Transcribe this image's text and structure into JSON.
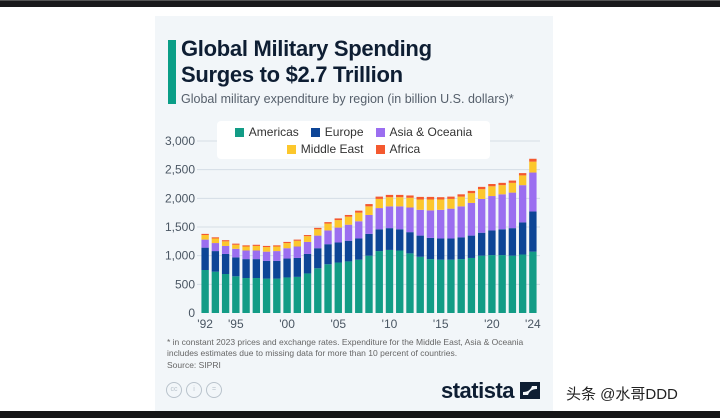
{
  "title": "Global Military Spending Surges to $2.7 Trillion",
  "title_lines": [
    "Global Military Spending",
    "Surges to $2.7 Trillion"
  ],
  "subtitle": "Global military expenditure by region (in billion U.S. dollars)*",
  "colors": {
    "accent": "#0a9e87",
    "Americas": "#139c86",
    "Europe": "#0d4596",
    "Asia & Oceania": "#9b6ef0",
    "Middle East": "#fcc72c",
    "Africa": "#f4592f"
  },
  "legend": [
    {
      "label": "Americas",
      "color": "#139c86"
    },
    {
      "label": "Europe",
      "color": "#0d4596"
    },
    {
      "label": "Asia & Oceania",
      "color": "#9b6ef0"
    },
    {
      "label": "Middle East",
      "color": "#fcc72c"
    },
    {
      "label": "Africa",
      "color": "#f4592f"
    }
  ],
  "chart_data": {
    "type": "bar",
    "stacked": true,
    "title": "Global Military Spending Surges to $2.7 Trillion",
    "xlabel": "",
    "ylabel": "",
    "ylim": [
      0,
      3000
    ],
    "yticks": [
      0,
      500,
      1000,
      1500,
      2000,
      2500,
      3000
    ],
    "ytick_labels": [
      "0",
      "500",
      "1,000",
      "1,500",
      "2,000",
      "2,500",
      "3,000"
    ],
    "grid": true,
    "legend_position": "top",
    "categories": [
      "1992",
      "1993",
      "1994",
      "1995",
      "1996",
      "1997",
      "1998",
      "1999",
      "2000",
      "2001",
      "2002",
      "2003",
      "2004",
      "2005",
      "2006",
      "2007",
      "2008",
      "2009",
      "2010",
      "2011",
      "2012",
      "2013",
      "2014",
      "2015",
      "2016",
      "2017",
      "2018",
      "2019",
      "2020",
      "2021",
      "2022",
      "2023",
      "2024"
    ],
    "xtick_labels": [
      {
        "category": "1992",
        "label": "'92"
      },
      {
        "category": "1995",
        "label": "'95"
      },
      {
        "category": "2000",
        "label": "'00"
      },
      {
        "category": "2005",
        "label": "'05"
      },
      {
        "category": "2010",
        "label": "'10"
      },
      {
        "category": "2015",
        "label": "'15"
      },
      {
        "category": "2020",
        "label": "'20"
      },
      {
        "category": "2024",
        "label": "'24"
      }
    ],
    "series": [
      {
        "name": "Americas",
        "values": [
          750,
          720,
          680,
          640,
          610,
          610,
          600,
          600,
          620,
          630,
          690,
          780,
          850,
          880,
          900,
          930,
          1000,
          1080,
          1100,
          1090,
          1040,
          980,
          940,
          930,
          930,
          940,
          960,
          1000,
          1010,
          1010,
          1000,
          1020,
          1070
        ]
      },
      {
        "name": "Europe",
        "values": [
          390,
          360,
          350,
          330,
          330,
          330,
          310,
          310,
          330,
          330,
          340,
          350,
          350,
          350,
          360,
          370,
          380,
          380,
          380,
          370,
          370,
          370,
          370,
          370,
          370,
          380,
          390,
          400,
          430,
          450,
          480,
          560,
          700
        ]
      },
      {
        "name": "Asia & Oceania",
        "values": [
          140,
          140,
          140,
          150,
          150,
          150,
          160,
          170,
          180,
          200,
          210,
          220,
          240,
          260,
          280,
          300,
          330,
          370,
          380,
          400,
          430,
          450,
          480,
          500,
          520,
          540,
          570,
          590,
          600,
          610,
          620,
          650,
          680
        ]
      },
      {
        "name": "Middle East",
        "values": [
          80,
          80,
          80,
          70,
          70,
          80,
          80,
          80,
          90,
          100,
          100,
          110,
          120,
          130,
          140,
          150,
          150,
          160,
          160,
          160,
          170,
          180,
          190,
          180,
          170,
          170,
          170,
          170,
          170,
          160,
          170,
          170,
          190
        ]
      },
      {
        "name": "Africa",
        "values": [
          20,
          20,
          20,
          20,
          20,
          20,
          20,
          20,
          20,
          20,
          20,
          25,
          25,
          30,
          30,
          35,
          40,
          40,
          40,
          40,
          40,
          45,
          45,
          40,
          40,
          40,
          40,
          40,
          40,
          40,
          40,
          40,
          50
        ]
      }
    ]
  },
  "footnote": "* in constant 2023 prices and exchange rates. Expenditure for the Middle East, Asia & Oceania includes estimates due to missing data for more than 10 percent of countries.",
  "source": "Source: SIPRI",
  "license_icons": [
    "cc",
    "by",
    "nd"
  ],
  "brand": "statista",
  "watermark": "头条 @水哥DDD"
}
